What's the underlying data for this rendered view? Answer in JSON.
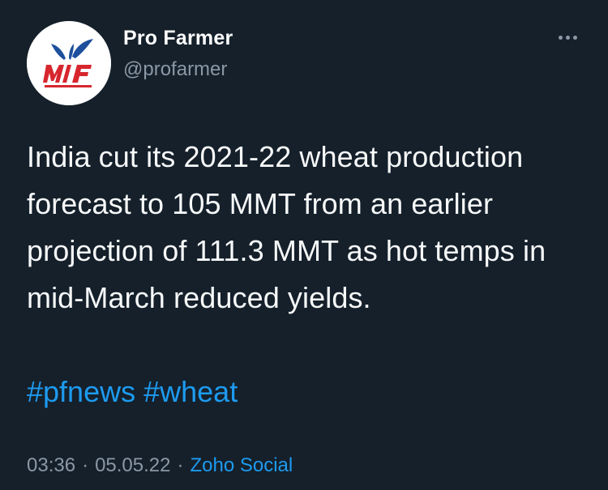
{
  "author": {
    "display_name": "Pro Farmer",
    "handle": "@profarmer",
    "avatar_icon": "pro-farmer-logo"
  },
  "menu": {
    "more_icon": "more-horizontal-icon"
  },
  "tweet": {
    "text": "India cut its 2021-22 wheat production forecast to 105 MMT from an earlier projection of 111.3 MMT as hot temps in mid-March reduced yields.",
    "hashtags": [
      "#pfnews",
      "#wheat"
    ]
  },
  "meta": {
    "time": "03:36",
    "separator": "·",
    "date": "05.05.22",
    "source": "Zoho Social"
  },
  "colors": {
    "background": "#15202b",
    "text": "#f7f9f9",
    "secondary": "#8b98a5",
    "accent": "#1d9bf0"
  }
}
